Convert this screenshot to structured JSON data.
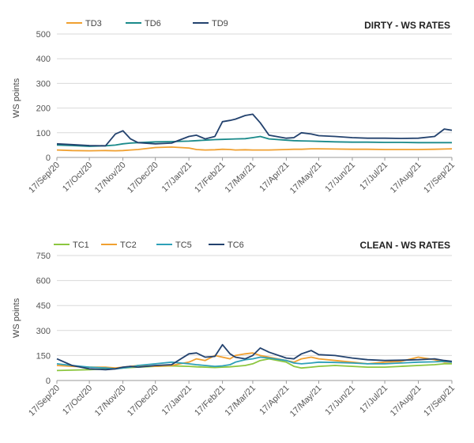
{
  "chart_data": [
    {
      "type": "line",
      "title": "DIRTY - WS RATES",
      "ylabel": "WS points",
      "xlabel": "",
      "ylim": [
        0,
        500
      ],
      "yticks": [
        0,
        100,
        200,
        300,
        400,
        500
      ],
      "x_tick_labels": [
        "17/Sep/20",
        "17/Oct/20",
        "17/Nov/20",
        "17/Dec/20",
        "17/Jan/21",
        "17/Feb/21",
        "17/Mar/21",
        "17/Apr/21",
        "17/May/21",
        "17/Jun/21",
        "17/Jul/21",
        "17/Aug/21",
        "17/Sep/21"
      ],
      "x_points": [
        "17/Sep/20",
        "01/Oct/20",
        "17/Oct/20",
        "01/Nov/20",
        "10/Nov/20",
        "17/Nov/20",
        "24/Nov/20",
        "01/Dec/20",
        "17/Dec/20",
        "01/Jan/21",
        "17/Jan/21",
        "24/Jan/21",
        "01/Feb/21",
        "10/Feb/21",
        "17/Feb/21",
        "24/Feb/21",
        "01/Mar/21",
        "10/Mar/21",
        "17/Mar/21",
        "24/Mar/21",
        "01/Apr/21",
        "17/Apr/21",
        "24/Apr/21",
        "01/May/21",
        "10/May/21",
        "17/May/21",
        "01/Jun/21",
        "17/Jun/21",
        "01/Jul/21",
        "17/Jul/21",
        "01/Aug/21",
        "17/Aug/21",
        "01/Sep/21",
        "10/Sep/21",
        "17/Sep/21"
      ],
      "legend_position": "top-left",
      "grid": true,
      "series": [
        {
          "name": "TD3",
          "color": "#f0a030",
          "values": [
            30,
            28,
            27,
            28,
            27,
            28,
            30,
            32,
            40,
            42,
            38,
            32,
            30,
            31,
            33,
            32,
            30,
            31,
            30,
            30,
            30,
            32,
            33,
            33,
            35,
            35,
            34,
            33,
            33,
            32,
            32,
            32,
            33,
            34,
            35
          ]
        },
        {
          "name": "TD6",
          "color": "#1a8a8a",
          "values": [
            50,
            48,
            45,
            47,
            50,
            55,
            58,
            60,
            63,
            64,
            66,
            68,
            70,
            72,
            73,
            74,
            75,
            76,
            80,
            85,
            75,
            70,
            68,
            67,
            66,
            65,
            63,
            62,
            62,
            61,
            61,
            60,
            60,
            60,
            60
          ]
        },
        {
          "name": "TD9",
          "color": "#23426e",
          "values": [
            55,
            52,
            48,
            47,
            95,
            108,
            75,
            60,
            55,
            58,
            85,
            90,
            75,
            85,
            145,
            150,
            155,
            170,
            175,
            140,
            90,
            78,
            80,
            100,
            95,
            88,
            85,
            80,
            78,
            78,
            77,
            78,
            85,
            115,
            110
          ]
        }
      ]
    },
    {
      "type": "line",
      "title": "CLEAN - WS RATES",
      "ylabel": "WS points",
      "xlabel": "",
      "ylim": [
        0,
        750
      ],
      "yticks": [
        0,
        150,
        300,
        450,
        600,
        750
      ],
      "x_tick_labels": [
        "17/Sep/20",
        "17/Oct/20",
        "17/Nov/20",
        "17/Dec/20",
        "17/Jan/21",
        "17/Feb/21",
        "17/Mar/21",
        "17/Apr/21",
        "17/May/21",
        "17/Jun/21",
        "17/Jul/21",
        "17/Aug/21",
        "17/Sep/21"
      ],
      "x_points": [
        "17/Sep/20",
        "01/Oct/20",
        "17/Oct/20",
        "01/Nov/20",
        "10/Nov/20",
        "17/Nov/20",
        "24/Nov/20",
        "01/Dec/20",
        "17/Dec/20",
        "01/Jan/21",
        "17/Jan/21",
        "24/Jan/21",
        "01/Feb/21",
        "10/Feb/21",
        "17/Feb/21",
        "24/Feb/21",
        "01/Mar/21",
        "10/Mar/21",
        "17/Mar/21",
        "24/Mar/21",
        "01/Apr/21",
        "17/Apr/21",
        "24/Apr/21",
        "01/May/21",
        "10/May/21",
        "17/May/21",
        "01/Jun/21",
        "17/Jun/21",
        "01/Jul/21",
        "17/Jul/21",
        "01/Aug/21",
        "17/Aug/21",
        "01/Sep/21",
        "10/Sep/21",
        "17/Sep/21"
      ],
      "legend_position": "top-left",
      "grid": true,
      "series": [
        {
          "name": "TC1",
          "color": "#8cc63f",
          "values": [
            60,
            62,
            65,
            70,
            72,
            75,
            78,
            80,
            85,
            88,
            85,
            82,
            80,
            78,
            80,
            82,
            85,
            90,
            100,
            120,
            130,
            110,
            85,
            75,
            80,
            85,
            90,
            85,
            80,
            80,
            85,
            90,
            95,
            100,
            100
          ]
        },
        {
          "name": "TC2",
          "color": "#f0a030",
          "values": [
            90,
            85,
            80,
            80,
            75,
            80,
            85,
            90,
            85,
            90,
            110,
            130,
            120,
            150,
            140,
            130,
            150,
            160,
            165,
            150,
            140,
            120,
            110,
            130,
            140,
            130,
            120,
            110,
            100,
            110,
            115,
            140,
            125,
            110,
            110
          ]
        },
        {
          "name": "TC5",
          "color": "#2ea0b8",
          "values": [
            100,
            90,
            80,
            75,
            70,
            75,
            80,
            90,
            100,
            110,
            100,
            95,
            90,
            85,
            88,
            95,
            110,
            125,
            130,
            140,
            135,
            120,
            105,
            100,
            105,
            110,
            108,
            105,
            100,
            100,
            105,
            110,
            112,
            115,
            110
          ]
        },
        {
          "name": "TC6",
          "color": "#23426e",
          "values": [
            130,
            90,
            70,
            65,
            70,
            80,
            85,
            80,
            90,
            95,
            160,
            165,
            140,
            145,
            215,
            160,
            140,
            130,
            150,
            195,
            170,
            135,
            130,
            160,
            180,
            155,
            150,
            135,
            125,
            120,
            122,
            125,
            130,
            120,
            115
          ]
        }
      ]
    }
  ]
}
